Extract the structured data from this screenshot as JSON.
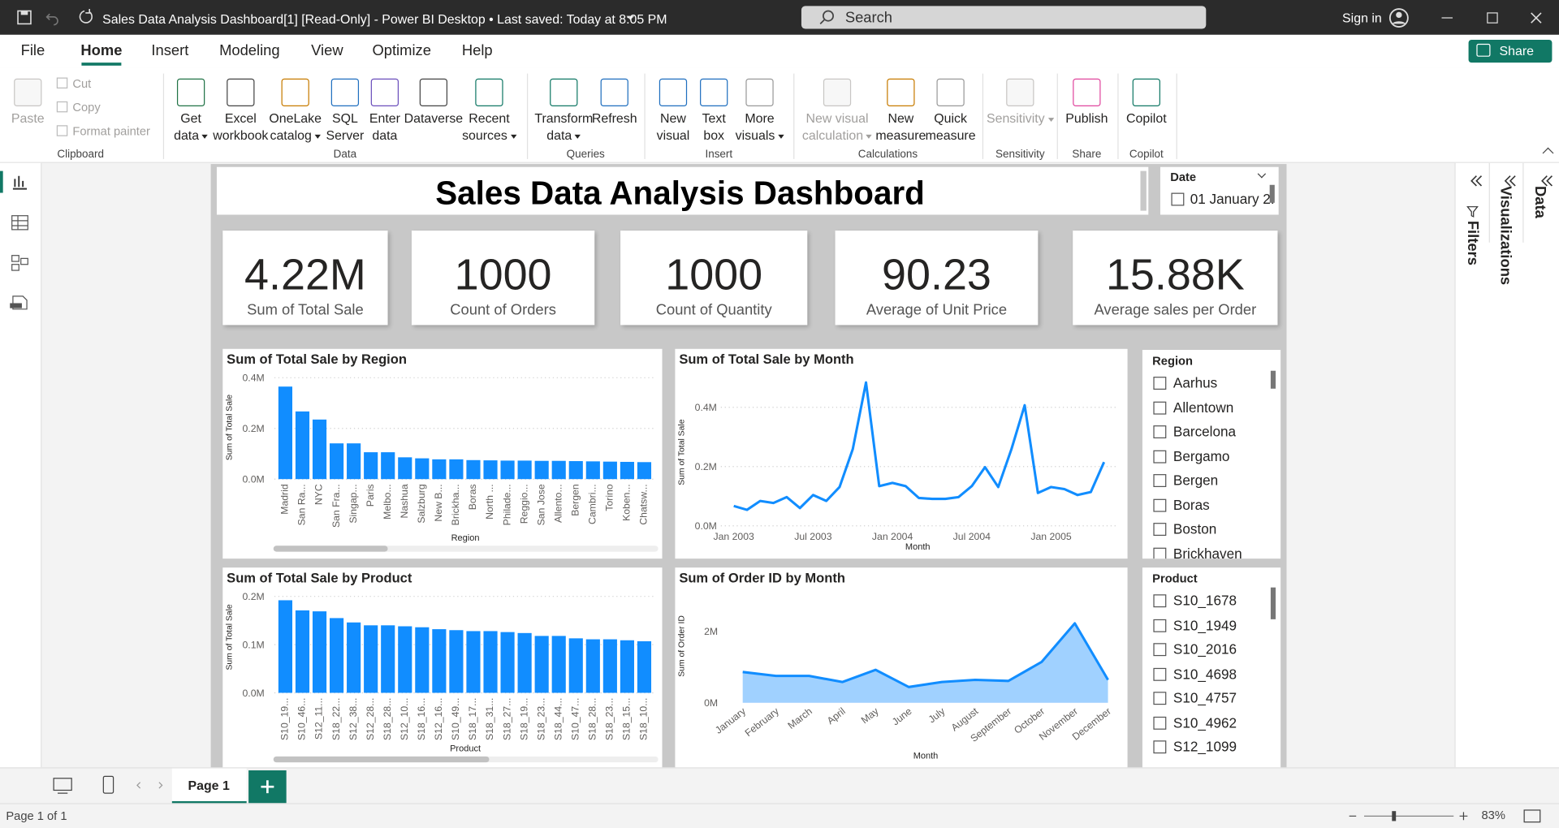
{
  "window": {
    "title": "Sales Data Analysis Dashboard[1] [Read-Only] - Power BI Desktop • Last saved: Today at 8:05 PM",
    "search": "Search",
    "sign_in": "Sign in"
  },
  "menu": {
    "tabs": [
      "File",
      "Home",
      "Insert",
      "Modeling",
      "View",
      "Optimize",
      "Help"
    ],
    "active_tab": 1,
    "share": "Share"
  },
  "ribbon": {
    "groups": [
      {
        "name": "Clipboard",
        "buttons": [
          {
            "label": [
              "Paste"
            ],
            "enabled": false
          },
          {
            "label": [
              "Cut"
            ],
            "enabled": false,
            "small": true
          },
          {
            "label": [
              "Copy"
            ],
            "enabled": false,
            "small": true
          },
          {
            "label": [
              "Format painter"
            ],
            "enabled": false,
            "small": true
          }
        ]
      },
      {
        "name": "Data",
        "buttons": [
          {
            "label": [
              "Get",
              "data"
            ],
            "enabled": true,
            "menu": true
          },
          {
            "label": [
              "Excel",
              "workbook"
            ],
            "enabled": true
          },
          {
            "label": [
              "OneLake",
              "catalog"
            ],
            "enabled": true,
            "menu": true
          },
          {
            "label": [
              "SQL",
              "Server"
            ],
            "enabled": true
          },
          {
            "label": [
              "Enter",
              "data"
            ],
            "enabled": true
          },
          {
            "label": [
              "Dataverse"
            ],
            "enabled": true
          },
          {
            "label": [
              "Recent",
              "sources"
            ],
            "enabled": true,
            "menu": true
          }
        ]
      },
      {
        "name": "Queries",
        "buttons": [
          {
            "label": [
              "Transform",
              "data"
            ],
            "enabled": true,
            "menu": true
          },
          {
            "label": [
              "Refresh"
            ],
            "enabled": true
          }
        ]
      },
      {
        "name": "Insert",
        "buttons": [
          {
            "label": [
              "New",
              "visual"
            ],
            "enabled": true
          },
          {
            "label": [
              "Text",
              "box"
            ],
            "enabled": true
          },
          {
            "label": [
              "More",
              "visuals"
            ],
            "enabled": true,
            "menu": true
          }
        ]
      },
      {
        "name": "Calculations",
        "buttons": [
          {
            "label": [
              "New visual",
              "calculation"
            ],
            "enabled": false,
            "menu": true
          },
          {
            "label": [
              "New",
              "measure"
            ],
            "enabled": true
          },
          {
            "label": [
              "Quick",
              "measure"
            ],
            "enabled": true
          }
        ]
      },
      {
        "name": "Sensitivity",
        "buttons": [
          {
            "label": [
              "Sensitivity"
            ],
            "enabled": false,
            "menu": true
          }
        ]
      },
      {
        "name": "Share",
        "buttons": [
          {
            "label": [
              "Publish"
            ],
            "enabled": true
          }
        ]
      },
      {
        "name": "Copilot",
        "buttons": [
          {
            "label": [
              "Copilot"
            ],
            "enabled": true
          }
        ]
      }
    ]
  },
  "panes": [
    "Filters",
    "Visualizations",
    "Data"
  ],
  "dashboard": {
    "title": "Sales Data Analysis Dashboard",
    "date_slicer": {
      "title": "Date",
      "items": [
        "01 January 2."
      ]
    },
    "cards": [
      {
        "value": "4.22M",
        "label": "Sum of Total Sale"
      },
      {
        "value": "1000",
        "label": "Count of Orders"
      },
      {
        "value": "1000",
        "label": "Count of Quantity"
      },
      {
        "value": "90.23",
        "label": "Average of Unit Price"
      },
      {
        "value": "15.88K",
        "label": "Average sales per Order"
      }
    ],
    "slicers": [
      {
        "title": "Region",
        "items": [
          "Aarhus",
          "Allentown",
          "Barcelona",
          "Bergamo",
          "Bergen",
          "Boras",
          "Boston",
          "Brickhaven"
        ]
      },
      {
        "title": "Product",
        "items": [
          "S10_1678",
          "S10_1949",
          "S10_2016",
          "S10_4698",
          "S10_4757",
          "S10_4962",
          "S12_1099"
        ]
      }
    ]
  },
  "chart_data": [
    {
      "type": "bar",
      "title": "Sum of Total Sale by Region",
      "x_label": "Region",
      "y_label": "Sum of Total Sale",
      "color": "#118DFF",
      "grid": true,
      "categories": [
        "Madrid",
        "San Ra...",
        "NYC",
        "San Fra...",
        "Singap...",
        "Paris",
        "Melbo...",
        "Nashua",
        "Salzburg",
        "New B...",
        "Brickha...",
        "Boras",
        "North ...",
        "Philade...",
        "Reggio...",
        "San Jose",
        "Allento...",
        "Bergen",
        "Cambri...",
        "Torino",
        "Koben...",
        "Chatsw..."
      ],
      "values": [
        365000,
        267000,
        235000,
        141000,
        141000,
        106000,
        106000,
        86000,
        82000,
        78000,
        78000,
        75000,
        74000,
        73000,
        73000,
        72000,
        72000,
        71000,
        70000,
        69000,
        68000,
        67000
      ],
      "ylim": [
        0,
        400000
      ],
      "yticks": [
        {
          "value": 0,
          "label": "0.0M"
        },
        {
          "value": 200000,
          "label": "0.2M"
        },
        {
          "value": 400000,
          "label": "0.4M"
        }
      ]
    },
    {
      "type": "line",
      "title": "Sum of Total Sale by Month",
      "x_label": "Month",
      "y_label": "Sum of Total Sale",
      "color": "#118DFF",
      "grid": true,
      "categories": [
        "Jan 2003",
        null,
        null,
        null,
        null,
        null,
        "Jul 2003",
        null,
        null,
        null,
        null,
        null,
        "Jan 2004",
        null,
        null,
        null,
        null,
        null,
        "Jul 2004",
        null,
        null,
        null,
        null,
        null,
        "Jan 2005",
        null,
        null,
        null,
        null
      ],
      "values": [
        67000,
        54000,
        84000,
        77000,
        97000,
        60000,
        104000,
        84000,
        131000,
        259000,
        484000,
        134000,
        145000,
        134000,
        94000,
        91000,
        91000,
        97000,
        134000,
        198000,
        131000,
        259000,
        407000,
        111000,
        131000,
        124000,
        104000,
        114000,
        215000
      ],
      "ylim": [
        0,
        500000
      ],
      "yticks": [
        {
          "value": 0,
          "label": "0.0M"
        },
        {
          "value": 200000,
          "label": "0.2M"
        },
        {
          "value": 400000,
          "label": "0.4M"
        }
      ]
    },
    {
      "type": "bar",
      "title": "Sum of Total Sale by Product",
      "x_label": "Product",
      "y_label": "Sum of Total Sale",
      "color": "#118DFF",
      "grid": true,
      "categories": [
        "S10_19...",
        "S10_46...",
        "S12_11...",
        "S18_22...",
        "S12_38...",
        "S12_28...",
        "S18_28...",
        "S12_10...",
        "S18_16...",
        "S12_16...",
        "S10_49...",
        "S18_17...",
        "S18_31...",
        "S18_27...",
        "S18_19...",
        "S18_23...",
        "S18_44...",
        "S10_47...",
        "S18_28...",
        "S18_23...",
        "S18_15...",
        "S18_10..."
      ],
      "values": [
        192000,
        171000,
        169000,
        155000,
        146000,
        140000,
        140000,
        138000,
        136000,
        132000,
        130000,
        128000,
        128000,
        126000,
        124000,
        118000,
        118000,
        113000,
        111000,
        111000,
        109000,
        107000
      ],
      "ylim": [
        0,
        200000
      ],
      "yticks": [
        {
          "value": 0,
          "label": "0.0M"
        },
        {
          "value": 100000,
          "label": "0.1M"
        },
        {
          "value": 200000,
          "label": "0.2M"
        }
      ]
    },
    {
      "type": "area",
      "title": "Sum of Order ID by Month",
      "x_label": "Month",
      "y_label": "Sum of Order ID",
      "color": "#118DFF",
      "grid": false,
      "categories": [
        "January",
        "February",
        "March",
        "April",
        "May",
        "June",
        "July",
        "August",
        "September",
        "October",
        "November",
        "December"
      ],
      "values": [
        860000,
        750000,
        750000,
        580000,
        920000,
        440000,
        580000,
        640000,
        610000,
        1140000,
        2220000,
        640000
      ],
      "ylim": [
        0,
        3000000
      ],
      "yticks": [
        {
          "value": 0,
          "label": "0M"
        },
        {
          "value": 2000000,
          "label": "2M"
        }
      ]
    }
  ],
  "footer": {
    "page_tab": "Page 1",
    "status": "Page 1 of 1",
    "zoom": "83%"
  }
}
